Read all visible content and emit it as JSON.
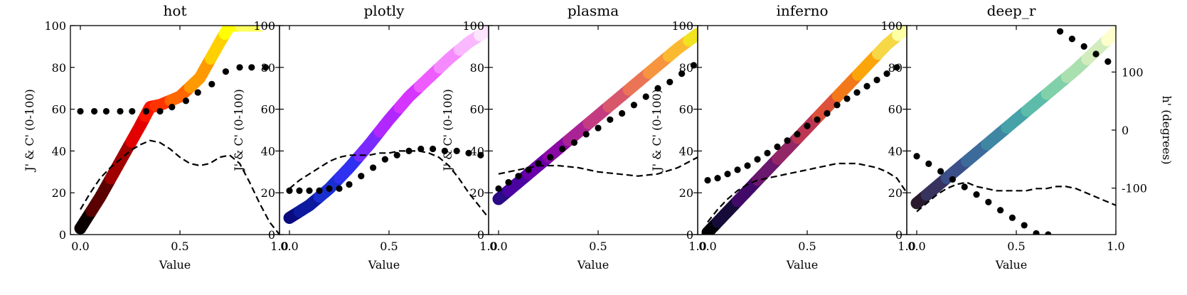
{
  "chart_data": [
    {
      "type": "line",
      "title": "hot",
      "xlabel": "Value",
      "ylabel": "J' & C' (0-100)",
      "xlim": [
        -0.05,
        1.0
      ],
      "ylim": [
        0,
        100
      ],
      "xticks": [
        "0.0",
        "0.5",
        "1.0"
      ],
      "yticks": [
        "0",
        "20",
        "40",
        "60",
        "80",
        "100"
      ],
      "series": [
        {
          "style": "thick-gradient-line",
          "x": [
            0,
            0.1,
            0.2,
            0.3,
            0.35,
            0.4,
            0.5,
            0.6,
            0.7,
            0.75,
            0.85,
            1.0
          ],
          "y": [
            3,
            18,
            35,
            52,
            61,
            62,
            66,
            75,
            92,
            100,
            100,
            100
          ],
          "colors": [
            "#0b0000",
            "#5a0000",
            "#a00000",
            "#e20000",
            "#ff1500",
            "#ff3300",
            "#ff6600",
            "#ff9900",
            "#ffd000",
            "#ffff00",
            "#ffff60",
            "#ffffff"
          ]
        },
        {
          "style": "dashed",
          "x": [
            0,
            0.05,
            0.1,
            0.15,
            0.2,
            0.25,
            0.3,
            0.35,
            0.4,
            0.45,
            0.5,
            0.55,
            0.6,
            0.65,
            0.7,
            0.75,
            0.8,
            0.85,
            0.9,
            0.95,
            1.0
          ],
          "y": [
            12,
            20,
            27,
            32,
            36,
            40,
            43,
            45,
            44,
            41,
            37,
            34,
            33,
            34,
            37,
            38,
            34,
            25,
            15,
            6,
            0
          ]
        },
        {
          "style": "dotted-markers",
          "x": [
            0,
            0.07,
            0.13,
            0.2,
            0.26,
            0.33,
            0.4,
            0.46,
            0.53,
            0.59,
            0.66,
            0.73,
            0.8,
            0.86,
            0.93
          ],
          "y": [
            59,
            59,
            59,
            59,
            59,
            59,
            59,
            61,
            64,
            68,
            72,
            78,
            80,
            80,
            80
          ]
        }
      ]
    },
    {
      "type": "line",
      "title": "plotly",
      "xlabel": "Value",
      "ylabel": "J' & C' (0-100)",
      "xlim": [
        -0.05,
        1.0
      ],
      "ylim": [
        0,
        100
      ],
      "xticks": [
        "0.0",
        "0.5",
        "1.0"
      ],
      "yticks": [
        "0",
        "20",
        "40",
        "60",
        "80",
        "100"
      ],
      "series": [
        {
          "style": "thick-gradient-line",
          "x": [
            0,
            0.1,
            0.2,
            0.3,
            0.4,
            0.5,
            0.6,
            0.7,
            0.8,
            0.9,
            1.0
          ],
          "y": [
            8,
            14,
            22,
            32,
            43,
            55,
            66,
            75,
            84,
            92,
            98
          ],
          "colors": [
            "#0a0a80",
            "#0d1aa0",
            "#1a2fd0",
            "#3030f0",
            "#7a2aff",
            "#b028ff",
            "#d535ff",
            "#ee5cff",
            "#f58aff",
            "#fab8ff",
            "#fde5ff"
          ]
        },
        {
          "style": "dashed",
          "x": [
            0,
            0.05,
            0.1,
            0.15,
            0.2,
            0.25,
            0.3,
            0.35,
            0.4,
            0.45,
            0.5,
            0.55,
            0.6,
            0.65,
            0.7,
            0.75,
            0.8,
            0.85,
            0.9,
            0.95,
            1.0
          ],
          "y": [
            22,
            26,
            29,
            32,
            35,
            37,
            38,
            38,
            38,
            39,
            39,
            40,
            40,
            40,
            39,
            37,
            33,
            27,
            20,
            14,
            8
          ]
        },
        {
          "style": "dotted-markers",
          "x": [
            0,
            0.05,
            0.1,
            0.15,
            0.2,
            0.25,
            0.3,
            0.36,
            0.42,
            0.48,
            0.54,
            0.6,
            0.66,
            0.72,
            0.78,
            0.84,
            0.9,
            0.96
          ],
          "y": [
            21,
            21,
            21,
            21,
            22,
            22,
            24,
            28,
            32,
            36,
            38,
            40,
            41,
            41,
            40,
            40,
            39,
            38
          ]
        }
      ]
    },
    {
      "type": "line",
      "title": "plasma",
      "xlabel": "Value",
      "ylabel": "J' & C' (0-100)",
      "xlim": [
        -0.05,
        1.0
      ],
      "ylim": [
        0,
        100
      ],
      "xticks": [
        "0.0",
        "0.5",
        "1.0"
      ],
      "yticks": [
        "0",
        "20",
        "40",
        "60",
        "80",
        "100"
      ],
      "series": [
        {
          "style": "thick-gradient-line",
          "x": [
            0,
            0.1,
            0.2,
            0.3,
            0.4,
            0.5,
            0.6,
            0.7,
            0.8,
            0.9,
            1.0
          ],
          "y": [
            17,
            25,
            33,
            41,
            49,
            57,
            65,
            73,
            81,
            89,
            96
          ],
          "colors": [
            "#2a0a85",
            "#4a02a0",
            "#6a00a8",
            "#8b0aa5",
            "#aa2395",
            "#c33c82",
            "#d8576b",
            "#ea7455",
            "#f7943f",
            "#fbb932",
            "#f0e421"
          ]
        },
        {
          "style": "dashed",
          "x": [
            0,
            0.1,
            0.2,
            0.3,
            0.4,
            0.5,
            0.6,
            0.7,
            0.8,
            0.9,
            1.0
          ],
          "y": [
            29,
            31,
            33,
            33,
            32,
            30,
            29,
            28,
            29,
            32,
            37
          ]
        },
        {
          "style": "dotted-markers",
          "x": [
            0,
            0.05,
            0.1,
            0.15,
            0.2,
            0.26,
            0.32,
            0.38,
            0.44,
            0.5,
            0.56,
            0.62,
            0.68,
            0.74,
            0.8,
            0.86,
            0.92,
            0.98
          ],
          "y": [
            22,
            25,
            28,
            31,
            34,
            37,
            41,
            44,
            48,
            51,
            55,
            58,
            62,
            66,
            70,
            73,
            77,
            81
          ]
        }
      ]
    },
    {
      "type": "line",
      "title": "inferno",
      "xlabel": "Value",
      "ylabel": "J' & C' (0-100)",
      "xlim": [
        -0.05,
        1.0
      ],
      "ylim": [
        0,
        100
      ],
      "xticks": [
        "0.0",
        "0.5",
        "1.0"
      ],
      "yticks": [
        "0",
        "20",
        "40",
        "60",
        "80",
        "100"
      ],
      "series": [
        {
          "style": "thick-gradient-line",
          "x": [
            0,
            0.1,
            0.2,
            0.3,
            0.4,
            0.5,
            0.6,
            0.7,
            0.8,
            0.9,
            1.0
          ],
          "y": [
            1,
            11,
            21,
            31,
            41,
            51,
            61,
            71,
            81,
            91,
            99
          ],
          "colors": [
            "#000004",
            "#160b39",
            "#420a68",
            "#6a176e",
            "#932667",
            "#bc3754",
            "#dd513a",
            "#f37819",
            "#fca50a",
            "#f6d746",
            "#fcffa4"
          ]
        },
        {
          "style": "dashed",
          "x": [
            0,
            0.05,
            0.1,
            0.15,
            0.2,
            0.25,
            0.3,
            0.35,
            0.4,
            0.45,
            0.5,
            0.55,
            0.6,
            0.65,
            0.7,
            0.75,
            0.8,
            0.85,
            0.9,
            0.95,
            1.0
          ],
          "y": [
            6,
            12,
            17,
            21,
            24,
            26,
            27,
            28,
            29,
            30,
            31,
            32,
            33,
            34,
            34,
            34,
            33,
            32,
            30,
            27,
            20
          ]
        },
        {
          "style": "dotted-markers",
          "x": [
            0,
            0.05,
            0.1,
            0.15,
            0.2,
            0.25,
            0.3,
            0.35,
            0.4,
            0.45,
            0.5,
            0.55,
            0.6,
            0.65,
            0.7,
            0.75,
            0.8,
            0.85,
            0.9,
            0.95
          ],
          "y": [
            26,
            27,
            29,
            31,
            33,
            36,
            39,
            42,
            45,
            48,
            52,
            55,
            58,
            62,
            65,
            68,
            71,
            74,
            77,
            80
          ]
        }
      ]
    },
    {
      "type": "line",
      "title": "deep_r",
      "xlabel": "Value",
      "ylabel": "",
      "ylabel_right": "h' (degrees)",
      "xlim": [
        -0.05,
        1.0
      ],
      "ylim": [
        0,
        100
      ],
      "ylim_right": [
        -180,
        180
      ],
      "xticks": [
        "0.0",
        "0.5",
        "1.0"
      ],
      "yticks": [
        "0",
        "20",
        "40",
        "60",
        "80",
        "100"
      ],
      "yticks_right": [
        "-100",
        "0",
        "100"
      ],
      "yticks_right_values": [
        -100,
        0,
        100
      ],
      "series": [
        {
          "style": "thick-gradient-line",
          "x": [
            0,
            0.1,
            0.2,
            0.3,
            0.4,
            0.5,
            0.6,
            0.7,
            0.8,
            0.9,
            1.0
          ],
          "y": [
            15,
            23,
            31,
            39,
            47,
            55,
            63,
            71,
            79,
            88,
            97
          ],
          "colors": [
            "#281a2c",
            "#36335f",
            "#3b4f89",
            "#3c6a9b",
            "#3f86a3",
            "#45a2a8",
            "#5cbca9",
            "#80d0a9",
            "#aadfaf",
            "#d2ecbd",
            "#fdfecc"
          ]
        },
        {
          "style": "dashed",
          "x": [
            0,
            0.05,
            0.1,
            0.15,
            0.2,
            0.25,
            0.3,
            0.35,
            0.4,
            0.45,
            0.5,
            0.55,
            0.6,
            0.65,
            0.7,
            0.75,
            0.8,
            0.85,
            0.9,
            0.95,
            1.0
          ],
          "y": [
            11,
            15,
            19,
            22,
            24,
            25,
            23,
            22,
            21,
            21,
            21,
            21,
            22,
            22,
            23,
            23,
            22,
            20,
            18,
            16,
            14
          ]
        },
        {
          "style": "dotted-markers",
          "axis": "right",
          "x": [
            0,
            0.06,
            0.12,
            0.18,
            0.24,
            0.3,
            0.36,
            0.42,
            0.48,
            0.54,
            0.6,
            0.66,
            0.72,
            0.78,
            0.84,
            0.9,
            0.96
          ],
          "y": [
            -45,
            -58,
            -71,
            -85,
            -98,
            -111,
            -124,
            -138,
            -151,
            -164,
            -178,
            -180,
            170,
            157,
            144,
            131,
            118
          ]
        }
      ]
    }
  ]
}
